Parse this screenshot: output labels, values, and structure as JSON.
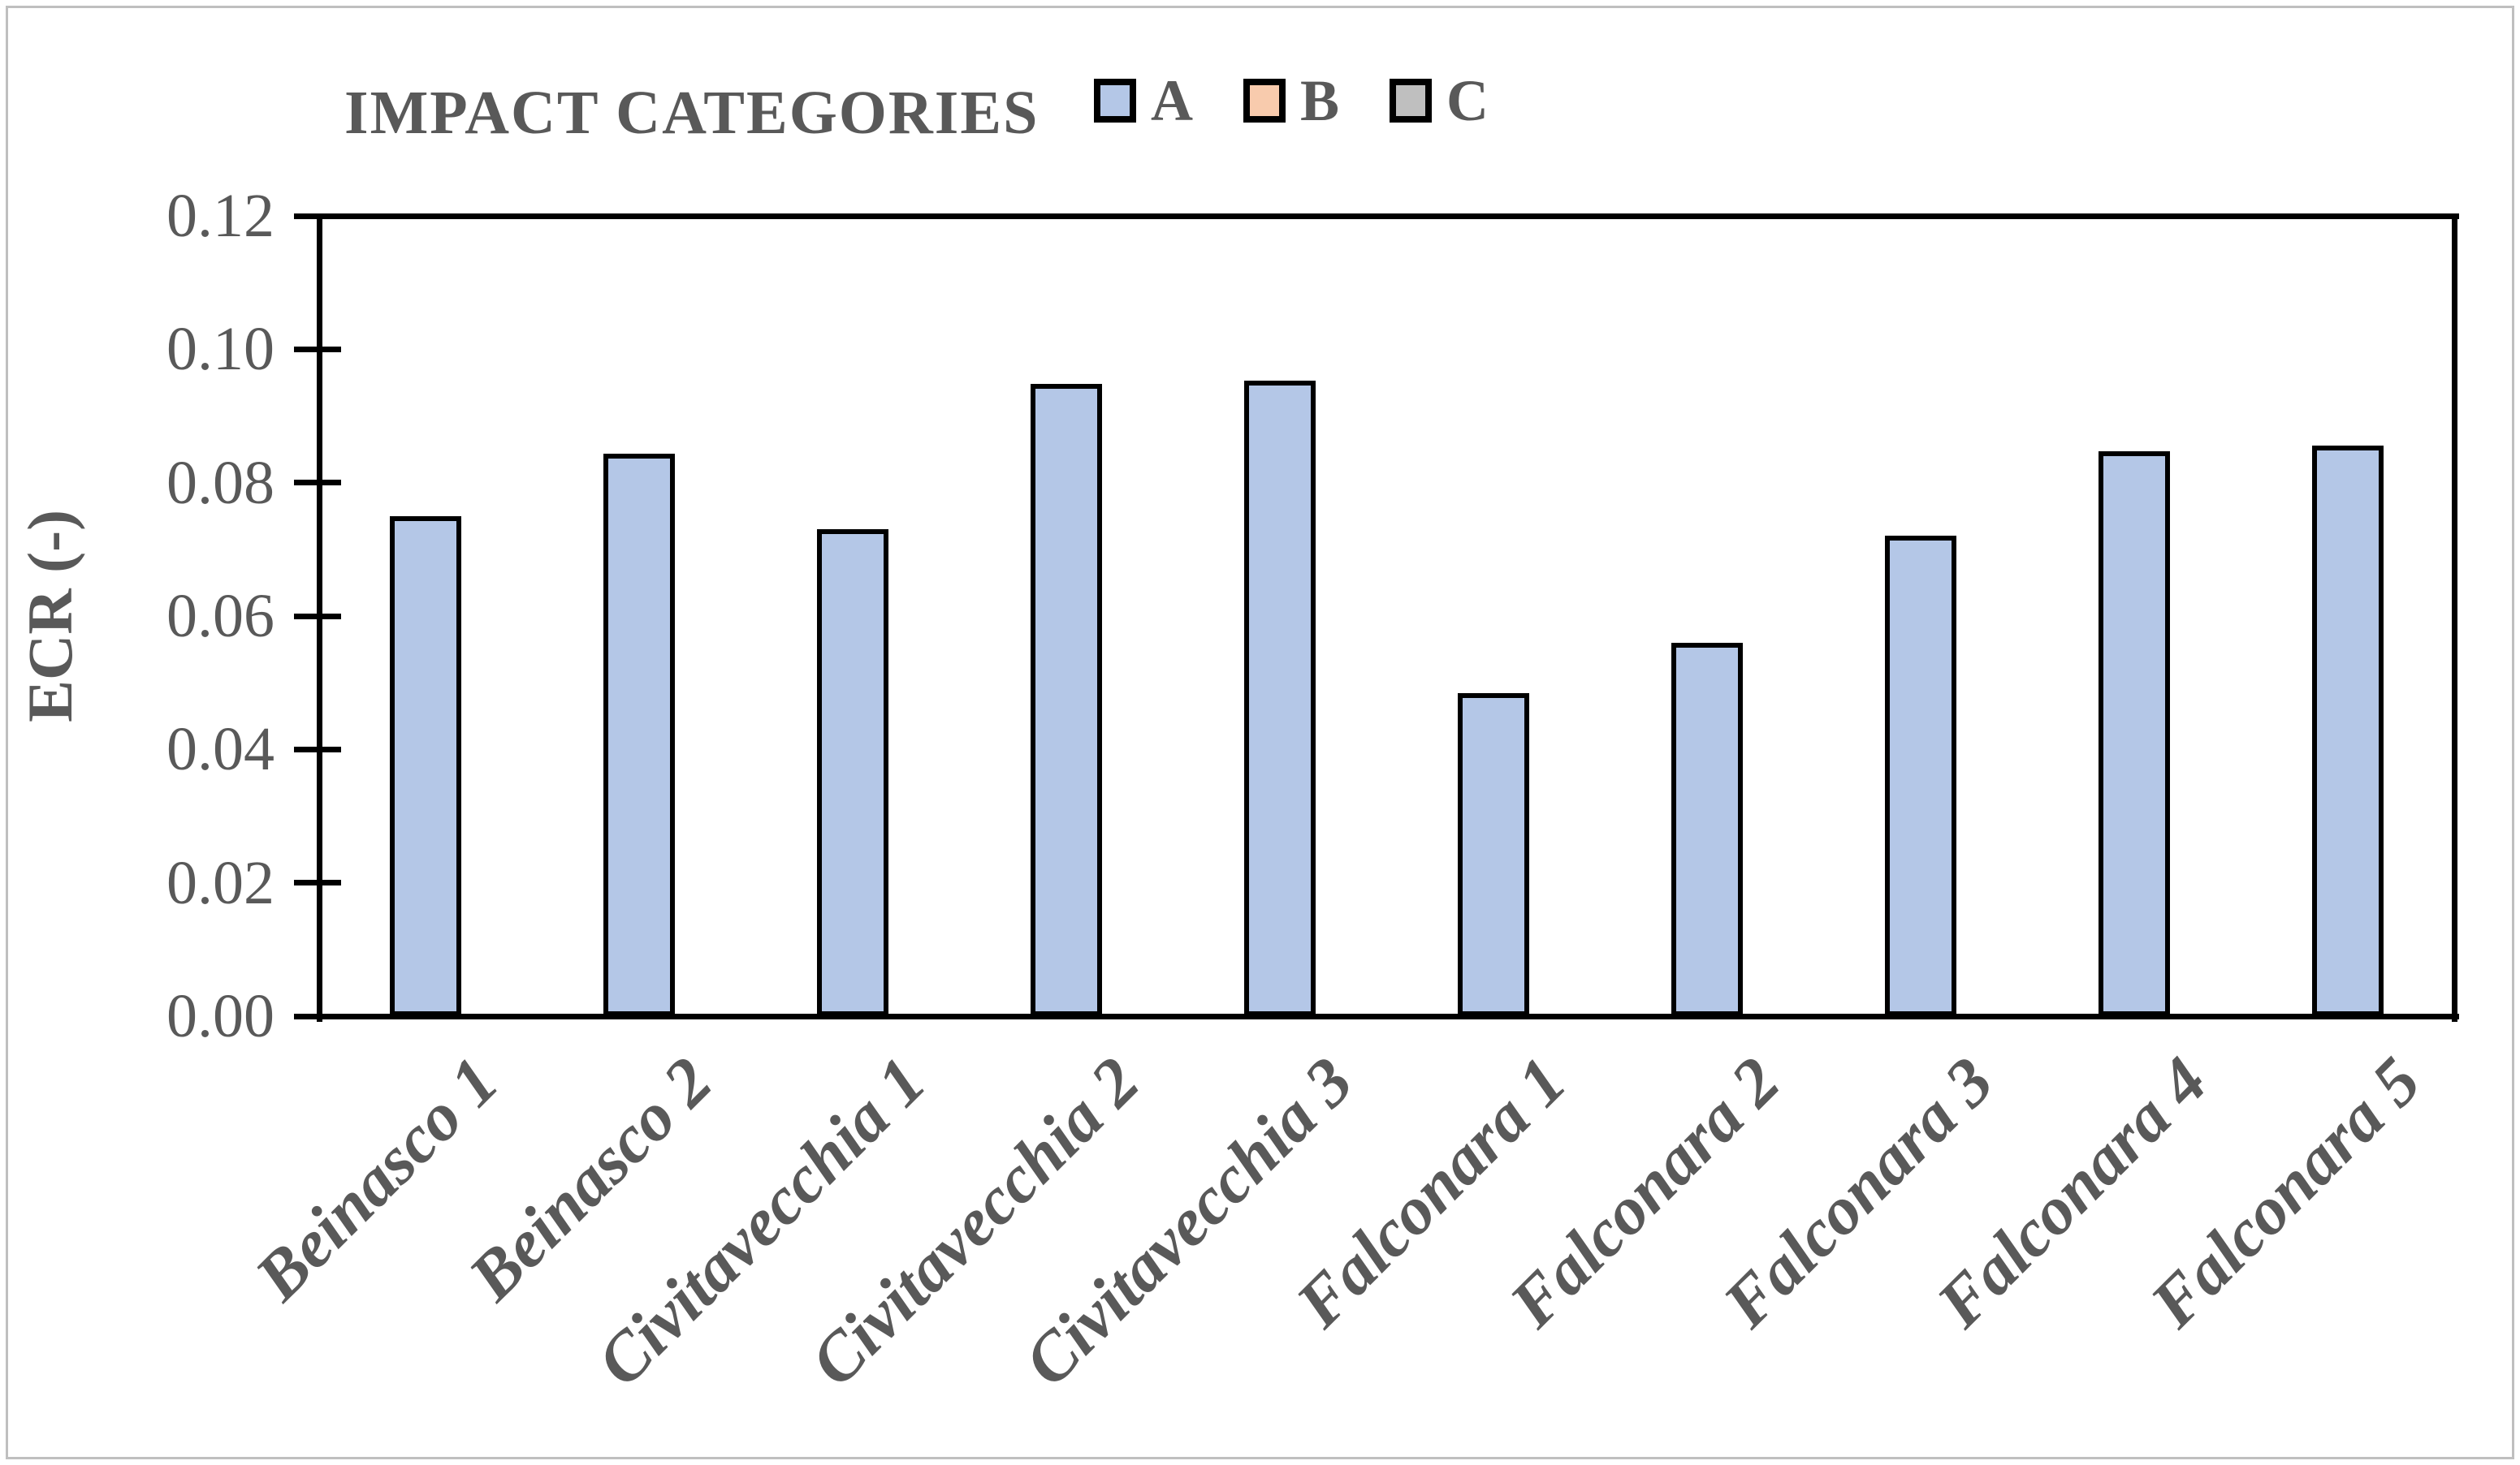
{
  "page": {
    "background": "#FFFFFF",
    "border_color": "#BFBFBF"
  },
  "chart_data": {
    "type": "bar",
    "title": "IMPACT CATEGORIES",
    "ylabel": "ECR (-)",
    "xlabel": "",
    "ylim": [
      0,
      0.12
    ],
    "ytick_labels": [
      "0.00",
      "0.02",
      "0.04",
      "0.06",
      "0.08",
      "0.10",
      "0.12"
    ],
    "grid": "off",
    "legend_position": "top",
    "legend": [
      {
        "label": "A",
        "color": "#B4C7E7"
      },
      {
        "label": "B",
        "color": "#F8CBAD"
      },
      {
        "label": "C",
        "color": "#BFBFBF"
      }
    ],
    "categories": [
      "Beinasco 1",
      "Beinasco 2",
      "Civitavecchia 1",
      "Civitavecchia 2",
      "Civitavecchia 3",
      "Falconara 1",
      "Falconara 2",
      "Falconara 3",
      "Falconara 4",
      "Falconara 5"
    ],
    "series": [
      {
        "name": "A",
        "color": "#B4C7E7",
        "values": [
          0.075,
          0.0843,
          0.073,
          0.0948,
          0.0953,
          0.0484,
          0.056,
          0.072,
          0.0847,
          0.0855
        ]
      }
    ],
    "bar_border_color": "#000000",
    "axis_color": "#000000",
    "text_color": "#595959"
  }
}
